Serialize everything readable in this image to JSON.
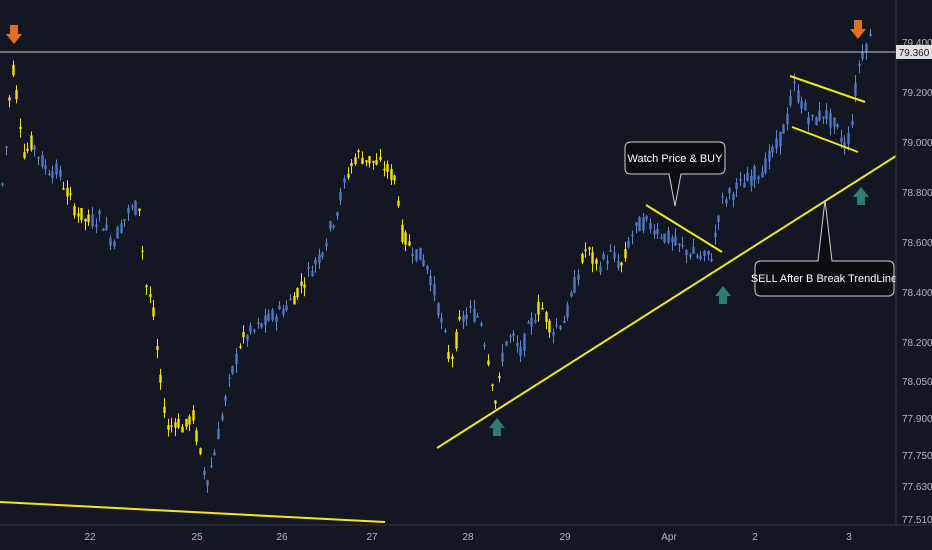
{
  "colors": {
    "background": "#131722",
    "axis_text": "#b2b5be",
    "axis_line": "#363a45",
    "candle_blue": "#4a78c8",
    "candle_blue_wick": "#5b86d6",
    "candle_yellow": "#f5e100",
    "trendline": "#f5e61c",
    "arrow_down": "#e07020",
    "arrow_up": "#2e7d6e",
    "hline": "#c8c8c8",
    "callout_bg": "#0b0d12",
    "callout_border": "#d0d0d0"
  },
  "chart_data": {
    "type": "candlestick",
    "ylim": [
      77.5,
      79.46
    ],
    "y_ticks": [
      77.51,
      77.63,
      77.75,
      77.9,
      78.05,
      78.2,
      78.4,
      78.6,
      78.8,
      79.0,
      79.2,
      79.4
    ],
    "y_tick_labels": [
      "77.510",
      "77.630",
      "77.750",
      "77.900",
      "78.050",
      "78.200",
      "78.400",
      "78.600",
      "78.800",
      "79.000",
      "79.200",
      "79.400"
    ],
    "x_labels": [
      "22",
      "25",
      "26",
      "27",
      "28",
      "29",
      "Apr",
      "2",
      "3"
    ],
    "horizontal_line": {
      "price": 79.36,
      "label": "79.360"
    },
    "annotations": [
      {
        "text": "Watch Price  & BUY"
      },
      {
        "text": "SELL After B Break TrendLine"
      }
    ],
    "path": [
      [
        0,
        78.75
      ],
      [
        5,
        78.95
      ],
      [
        12,
        79.32
      ],
      [
        18,
        79.15
      ],
      [
        24,
        78.95
      ],
      [
        32,
        79.0
      ],
      [
        44,
        78.9
      ],
      [
        58,
        78.88
      ],
      [
        72,
        78.75
      ],
      [
        86,
        78.68
      ],
      [
        100,
        78.7
      ],
      [
        112,
        78.6
      ],
      [
        128,
        78.72
      ],
      [
        140,
        78.75
      ],
      [
        144,
        78.45
      ],
      [
        152,
        78.35
      ],
      [
        160,
        78.05
      ],
      [
        168,
        77.85
      ],
      [
        176,
        77.9
      ],
      [
        184,
        77.85
      ],
      [
        192,
        77.92
      ],
      [
        200,
        77.75
      ],
      [
        206,
        77.65
      ],
      [
        212,
        77.72
      ],
      [
        220,
        77.88
      ],
      [
        228,
        78.02
      ],
      [
        240,
        78.2
      ],
      [
        256,
        78.25
      ],
      [
        272,
        78.3
      ],
      [
        288,
        78.35
      ],
      [
        304,
        78.45
      ],
      [
        320,
        78.55
      ],
      [
        336,
        78.72
      ],
      [
        348,
        78.88
      ],
      [
        356,
        78.95
      ],
      [
        368,
        78.93
      ],
      [
        384,
        78.9
      ],
      [
        396,
        78.85
      ],
      [
        402,
        78.62
      ],
      [
        412,
        78.58
      ],
      [
        428,
        78.5
      ],
      [
        440,
        78.3
      ],
      [
        450,
        78.12
      ],
      [
        460,
        78.28
      ],
      [
        470,
        78.32
      ],
      [
        480,
        78.3
      ],
      [
        490,
        78.1
      ],
      [
        496,
        77.95
      ],
      [
        504,
        78.2
      ],
      [
        512,
        78.22
      ],
      [
        520,
        78.15
      ],
      [
        528,
        78.25
      ],
      [
        540,
        78.35
      ],
      [
        552,
        78.25
      ],
      [
        566,
        78.3
      ],
      [
        576,
        78.45
      ],
      [
        586,
        78.58
      ],
      [
        596,
        78.5
      ],
      [
        610,
        78.55
      ],
      [
        622,
        78.5
      ],
      [
        630,
        78.62
      ],
      [
        642,
        78.68
      ],
      [
        654,
        78.66
      ],
      [
        666,
        78.62
      ],
      [
        678,
        78.58
      ],
      [
        690,
        78.56
      ],
      [
        702,
        78.53
      ],
      [
        712,
        78.55
      ],
      [
        720,
        78.75
      ],
      [
        732,
        78.8
      ],
      [
        748,
        78.85
      ],
      [
        764,
        78.9
      ],
      [
        776,
        78.98
      ],
      [
        786,
        79.08
      ],
      [
        794,
        79.22
      ],
      [
        802,
        79.15
      ],
      [
        812,
        79.08
      ],
      [
        824,
        79.12
      ],
      [
        836,
        79.05
      ],
      [
        846,
        78.98
      ],
      [
        852,
        79.1
      ],
      [
        858,
        79.3
      ],
      [
        864,
        79.38
      ],
      [
        870,
        79.42
      ]
    ],
    "yellow_ranges": [
      [
        8,
        32
      ],
      [
        60,
        90
      ],
      [
        138,
        200
      ],
      [
        236,
        246
      ],
      [
        292,
        308
      ],
      [
        346,
        410
      ],
      [
        446,
        462
      ],
      [
        488,
        500
      ],
      [
        536,
        552
      ],
      [
        580,
        598
      ],
      [
        620,
        628
      ]
    ]
  }
}
